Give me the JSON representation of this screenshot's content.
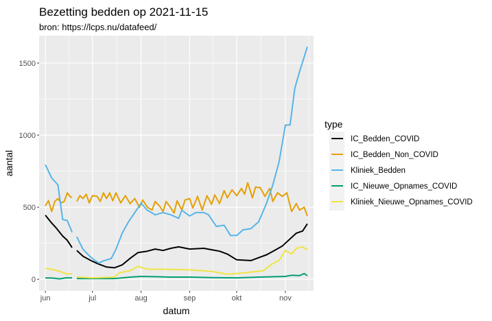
{
  "chart_data": {
    "type": "line",
    "title": "Bezetting bedden op 2021-11-15",
    "subtitle": "bron: https://lcps.nu/datafeed/",
    "xlabel": "datum",
    "ylabel": "aantal",
    "xlim": [
      "2021-05-28",
      "2021-11-19"
    ],
    "ylim": [
      -80,
      1690
    ],
    "x_ticks": [
      {
        "date": "2021-06-01",
        "label": "jun"
      },
      {
        "date": "2021-07-01",
        "label": "jul"
      },
      {
        "date": "2021-08-01",
        "label": "aug"
      },
      {
        "date": "2021-09-01",
        "label": "sep"
      },
      {
        "date": "2021-10-01",
        "label": "okt"
      },
      {
        "date": "2021-11-01",
        "label": "nov"
      }
    ],
    "y_ticks": [
      0,
      500,
      1000,
      1500
    ],
    "grid": true,
    "legend": {
      "title": "type",
      "position": "right"
    },
    "series": [
      {
        "name": "IC_Bedden_COVID",
        "color": "#000000",
        "points": [
          [
            "2021-06-01",
            445
          ],
          [
            "2021-06-05",
            390
          ],
          [
            "2021-06-08",
            355
          ],
          [
            "2021-06-12",
            300
          ],
          [
            "2021-06-15",
            270
          ],
          [
            "2021-06-18",
            220
          ],
          null,
          [
            "2021-06-21",
            200
          ],
          [
            "2021-06-25",
            160
          ],
          [
            "2021-06-30",
            130
          ],
          [
            "2021-07-05",
            105
          ],
          [
            "2021-07-10",
            85
          ],
          [
            "2021-07-15",
            80
          ],
          [
            "2021-07-20",
            100
          ],
          [
            "2021-07-25",
            145
          ],
          [
            "2021-07-30",
            185
          ],
          [
            "2021-08-05",
            195
          ],
          [
            "2021-08-10",
            210
          ],
          [
            "2021-08-15",
            200
          ],
          [
            "2021-08-20",
            215
          ],
          [
            "2021-08-25",
            225
          ],
          [
            "2021-09-01",
            210
          ],
          [
            "2021-09-10",
            215
          ],
          [
            "2021-09-15",
            205
          ],
          [
            "2021-09-20",
            195
          ],
          [
            "2021-09-25",
            175
          ],
          [
            "2021-10-01",
            135
          ],
          [
            "2021-10-10",
            130
          ],
          [
            "2021-10-15",
            150
          ],
          [
            "2021-10-20",
            170
          ],
          [
            "2021-10-25",
            200
          ],
          [
            "2021-10-30",
            230
          ],
          [
            "2021-11-04",
            280
          ],
          [
            "2021-11-08",
            320
          ],
          [
            "2021-11-12",
            335
          ],
          [
            "2021-11-15",
            385
          ]
        ]
      },
      {
        "name": "IC_Bedden_Non_COVID",
        "color": "#E69F00",
        "points": [
          [
            "2021-06-01",
            510
          ],
          [
            "2021-06-03",
            545
          ],
          [
            "2021-06-05",
            470
          ],
          [
            "2021-06-07",
            540
          ],
          [
            "2021-06-09",
            560
          ],
          [
            "2021-06-11",
            530
          ],
          [
            "2021-06-13",
            540
          ],
          [
            "2021-06-15",
            600
          ],
          [
            "2021-06-17",
            570
          ],
          [
            "2021-06-18",
            570
          ],
          null,
          [
            "2021-06-21",
            540
          ],
          [
            "2021-06-23",
            580
          ],
          [
            "2021-06-25",
            560
          ],
          [
            "2021-06-27",
            590
          ],
          [
            "2021-06-29",
            530
          ],
          [
            "2021-07-01",
            580
          ],
          [
            "2021-07-04",
            575
          ],
          [
            "2021-07-06",
            540
          ],
          [
            "2021-07-08",
            600
          ],
          [
            "2021-07-10",
            560
          ],
          [
            "2021-07-12",
            600
          ],
          [
            "2021-07-14",
            545
          ],
          [
            "2021-07-16",
            600
          ],
          [
            "2021-07-19",
            530
          ],
          [
            "2021-07-22",
            580
          ],
          [
            "2021-07-25",
            525
          ],
          [
            "2021-07-28",
            560
          ],
          [
            "2021-07-31",
            500
          ],
          [
            "2021-08-02",
            550
          ],
          [
            "2021-08-05",
            500
          ],
          [
            "2021-08-08",
            480
          ],
          [
            "2021-08-10",
            540
          ],
          [
            "2021-08-13",
            505
          ],
          [
            "2021-08-15",
            470
          ],
          [
            "2021-08-17",
            540
          ],
          [
            "2021-08-20",
            495
          ],
          [
            "2021-08-22",
            460
          ],
          [
            "2021-08-24",
            545
          ],
          [
            "2021-08-27",
            480
          ],
          [
            "2021-08-29",
            550
          ],
          [
            "2021-09-01",
            560
          ],
          [
            "2021-09-03",
            495
          ],
          [
            "2021-09-06",
            575
          ],
          [
            "2021-09-09",
            480
          ],
          [
            "2021-09-12",
            580
          ],
          [
            "2021-09-15",
            520
          ],
          [
            "2021-09-17",
            585
          ],
          [
            "2021-09-20",
            525
          ],
          [
            "2021-09-23",
            615
          ],
          [
            "2021-09-25",
            565
          ],
          [
            "2021-09-28",
            620
          ],
          [
            "2021-10-01",
            580
          ],
          [
            "2021-10-04",
            630
          ],
          [
            "2021-10-06",
            590
          ],
          [
            "2021-10-08",
            670
          ],
          [
            "2021-10-11",
            565
          ],
          [
            "2021-10-13",
            640
          ],
          [
            "2021-10-16",
            635
          ],
          [
            "2021-10-19",
            575
          ],
          [
            "2021-10-22",
            630
          ],
          [
            "2021-10-24",
            540
          ],
          [
            "2021-10-27",
            600
          ],
          [
            "2021-10-30",
            575
          ],
          [
            "2021-11-02",
            600
          ],
          [
            "2021-11-05",
            470
          ],
          [
            "2021-11-08",
            525
          ],
          [
            "2021-11-10",
            480
          ],
          [
            "2021-11-13",
            500
          ],
          [
            "2021-11-15",
            440
          ]
        ]
      },
      {
        "name": "Kliniek_Bedden",
        "color": "#56B4E9",
        "points": [
          [
            "2021-06-01",
            795
          ],
          [
            "2021-06-05",
            703
          ],
          [
            "2021-06-09",
            655
          ],
          [
            "2021-06-12",
            415
          ],
          [
            "2021-06-15",
            407
          ],
          [
            "2021-06-18",
            327
          ],
          null,
          [
            "2021-06-21",
            295
          ],
          [
            "2021-06-25",
            208
          ],
          [
            "2021-06-30",
            152
          ],
          [
            "2021-07-05",
            112
          ],
          [
            "2021-07-08",
            128
          ],
          [
            "2021-07-13",
            144
          ],
          [
            "2021-07-16",
            208
          ],
          [
            "2021-07-20",
            320
          ],
          [
            "2021-07-24",
            399
          ],
          [
            "2021-07-28",
            463
          ],
          [
            "2021-08-01",
            527
          ],
          [
            "2021-08-05",
            479
          ],
          [
            "2021-08-10",
            447
          ],
          [
            "2021-08-15",
            463
          ],
          [
            "2021-08-20",
            447
          ],
          [
            "2021-08-25",
            423
          ],
          [
            "2021-08-27",
            479
          ],
          [
            "2021-09-01",
            439
          ],
          [
            "2021-09-05",
            463
          ],
          [
            "2021-09-10",
            463
          ],
          [
            "2021-09-13",
            447
          ],
          [
            "2021-09-18",
            367
          ],
          [
            "2021-09-23",
            375
          ],
          [
            "2021-09-27",
            304
          ],
          [
            "2021-10-01",
            304
          ],
          [
            "2021-10-05",
            343
          ],
          [
            "2021-10-10",
            351
          ],
          [
            "2021-10-15",
            399
          ],
          [
            "2021-10-20",
            527
          ],
          [
            "2021-10-24",
            655
          ],
          [
            "2021-10-28",
            815
          ],
          [
            "2021-11-01",
            1070
          ],
          [
            "2021-11-04",
            1070
          ],
          [
            "2021-11-07",
            1325
          ],
          [
            "2021-11-10",
            1438
          ],
          [
            "2021-11-15",
            1613
          ]
        ]
      },
      {
        "name": "IC_Nieuwe_Opnames_COVID",
        "color": "#009E73",
        "points": [
          [
            "2021-06-01",
            10
          ],
          [
            "2021-06-06",
            8
          ],
          [
            "2021-06-10",
            3
          ],
          [
            "2021-06-14",
            10
          ],
          [
            "2021-06-18",
            10
          ],
          null,
          [
            "2021-06-21",
            5
          ],
          [
            "2021-07-01",
            5
          ],
          [
            "2021-07-15",
            5
          ],
          [
            "2021-07-20",
            10
          ],
          [
            "2021-07-25",
            15
          ],
          [
            "2021-08-01",
            20
          ],
          [
            "2021-08-10",
            18
          ],
          [
            "2021-08-20",
            15
          ],
          [
            "2021-09-01",
            15
          ],
          [
            "2021-09-15",
            12
          ],
          [
            "2021-10-01",
            10
          ],
          [
            "2021-10-15",
            15
          ],
          [
            "2021-11-01",
            20
          ],
          [
            "2021-11-05",
            28
          ],
          [
            "2021-11-10",
            25
          ],
          [
            "2021-11-13",
            40
          ],
          [
            "2021-11-15",
            25
          ]
        ]
      },
      {
        "name": "Kliniek_Nieuwe_Opnames_COVID",
        "color": "#F0E442",
        "points": [
          [
            "2021-06-01",
            75
          ],
          [
            "2021-06-05",
            70
          ],
          [
            "2021-06-10",
            55
          ],
          [
            "2021-06-15",
            35
          ],
          [
            "2021-06-18",
            40
          ],
          null,
          [
            "2021-06-21",
            15
          ],
          [
            "2021-07-01",
            10
          ],
          [
            "2021-07-15",
            15
          ],
          [
            "2021-07-18",
            45
          ],
          [
            "2021-07-25",
            60
          ],
          [
            "2021-07-30",
            90
          ],
          [
            "2021-08-05",
            70
          ],
          [
            "2021-08-15",
            70
          ],
          [
            "2021-09-01",
            65
          ],
          [
            "2021-09-15",
            55
          ],
          [
            "2021-09-25",
            35
          ],
          [
            "2021-10-01",
            40
          ],
          [
            "2021-10-10",
            50
          ],
          [
            "2021-10-18",
            60
          ],
          [
            "2021-10-24",
            110
          ],
          [
            "2021-10-28",
            130
          ],
          [
            "2021-11-01",
            200
          ],
          [
            "2021-11-05",
            175
          ],
          [
            "2021-11-08",
            215
          ],
          [
            "2021-11-12",
            225
          ],
          [
            "2021-11-15",
            205
          ]
        ]
      }
    ]
  }
}
